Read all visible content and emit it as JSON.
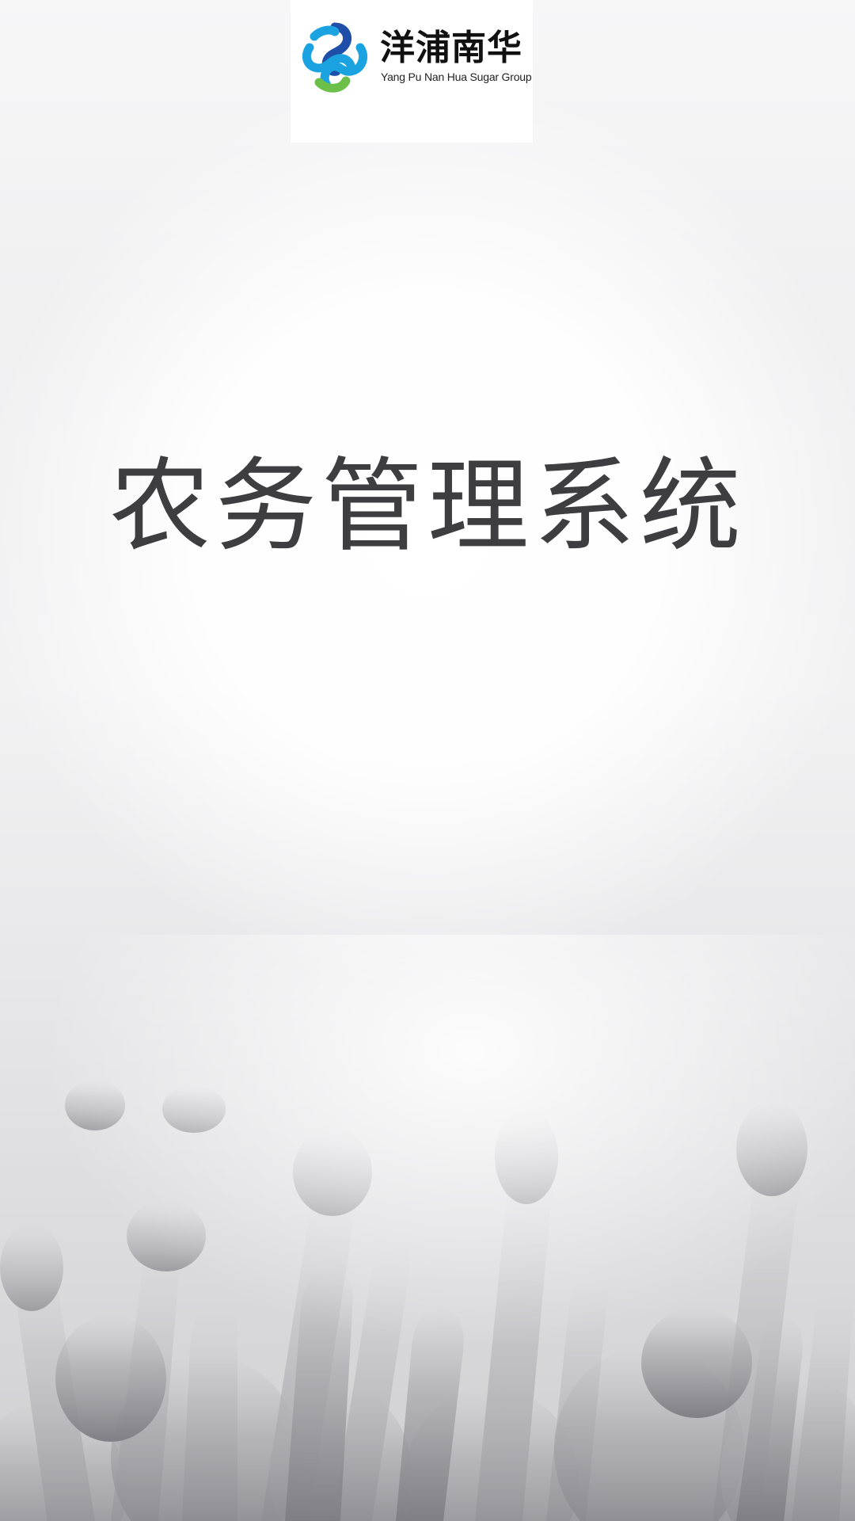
{
  "header": {
    "logo_icon": "brand-knot-logo-icon",
    "brand_name_cn": "洋浦南华",
    "brand_name_en": "Yang Pu Nan Hua Sugar Group"
  },
  "main": {
    "title": "农务管理系统"
  },
  "background": {
    "image": "crowd-raised-hands-photo"
  },
  "colors": {
    "logo_blue_dark": "#1f4fa8",
    "logo_blue_light": "#1aa3e0",
    "logo_green": "#6cc04a",
    "title_text": "#3e3e40"
  }
}
